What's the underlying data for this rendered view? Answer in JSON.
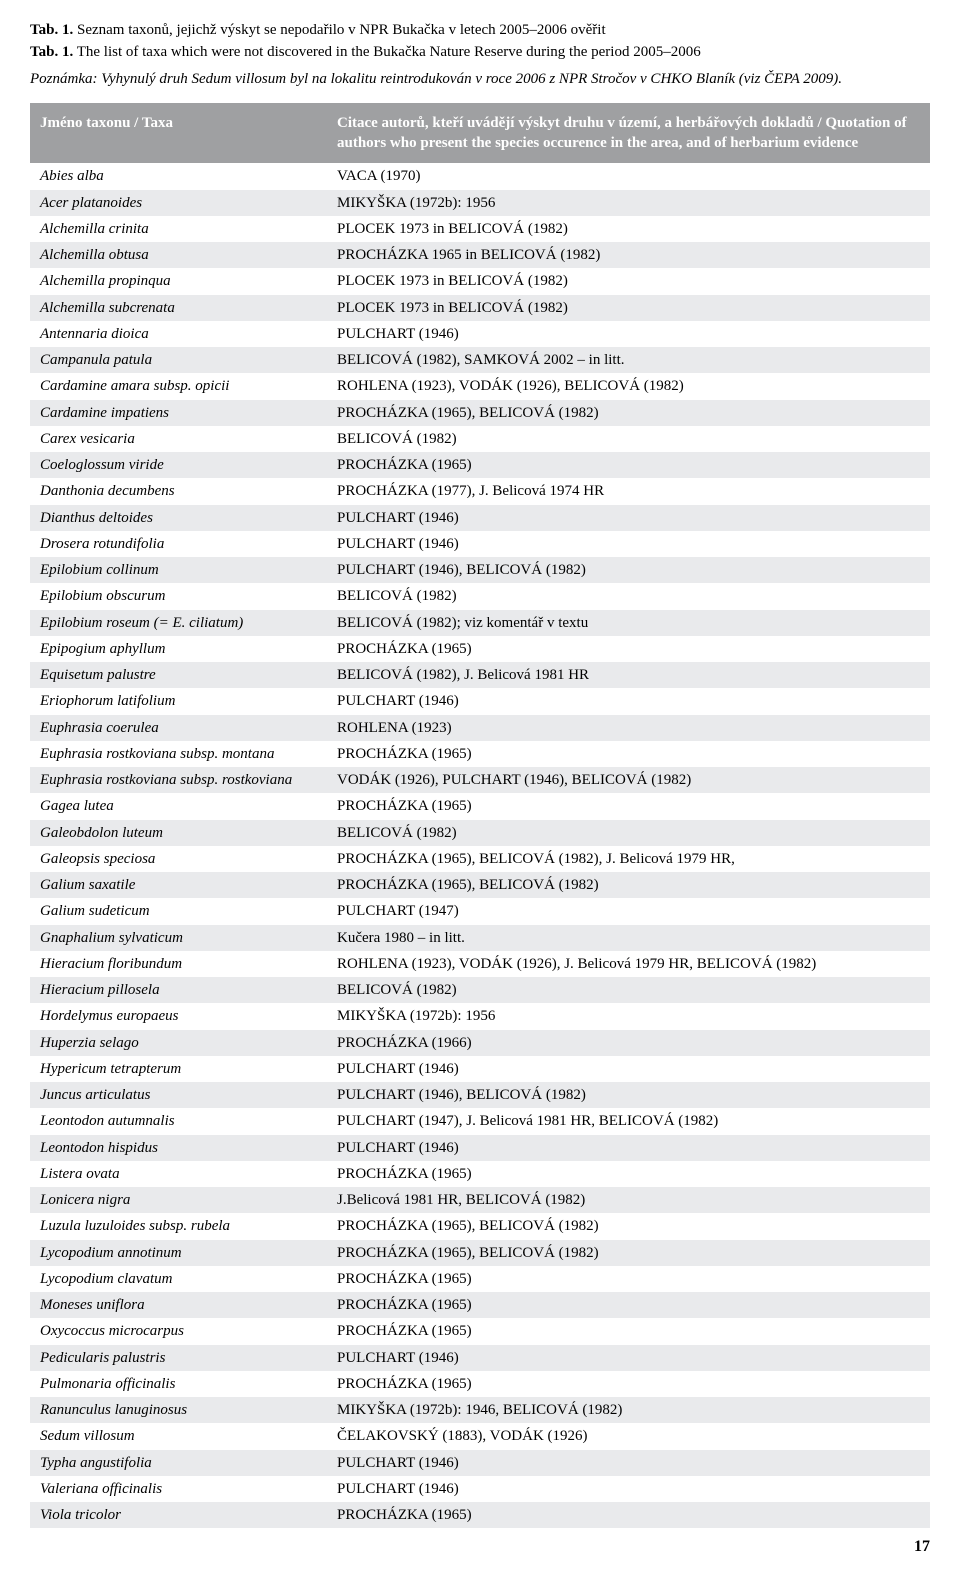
{
  "header": {
    "title_cs_label": "Tab. 1.",
    "title_cs": "Seznam taxonů, jejichž výskyt se nepodařilo v NPR Bukačka v letech 2005–2006 ověřit",
    "title_en_label": "Tab. 1.",
    "title_en": "The list of taxa which were not discovered in the Bukačka Nature Reserve during the period 2005–2006",
    "note": "Poznámka: Vyhynulý druh Sedum villosum byl na lokalitu reintrodukován v roce 2006 z NPR Stročov v CHKO Blaník (viz ČEPA 2009)."
  },
  "table": {
    "col1_header": "Jméno taxonu / Taxa",
    "col2_header": "Citace autorů, kteří uvádějí výskyt druhu v území, a herbářových dokladů / Quotation of authors who present the species occurence in the area, and of herbarium evidence",
    "rows": [
      {
        "taxon": "Abies alba",
        "cite": "VACA (1970)"
      },
      {
        "taxon": "Acer platanoides",
        "cite": "MIKYŠKA (1972b): 1956"
      },
      {
        "taxon": "Alchemilla crinita",
        "cite": "PLOCEK 1973 in BELICOVÁ (1982)"
      },
      {
        "taxon": "Alchemilla obtusa",
        "cite": "PROCHÁZKA 1965 in BELICOVÁ (1982)"
      },
      {
        "taxon": "Alchemilla propinqua",
        "cite": "PLOCEK 1973 in BELICOVÁ (1982)"
      },
      {
        "taxon": "Alchemilla subcrenata",
        "cite": "PLOCEK 1973 in BELICOVÁ (1982)"
      },
      {
        "taxon": "Antennaria dioica",
        "cite": "PULCHART (1946)"
      },
      {
        "taxon": "Campanula patula",
        "cite": "BELICOVÁ (1982), SAMKOVÁ 2002 – in litt."
      },
      {
        "taxon": "Cardamine amara subsp. opicii",
        "cite": "ROHLENA (1923), VODÁK (1926), BELICOVÁ (1982)"
      },
      {
        "taxon": "Cardamine impatiens",
        "cite": "PROCHÁZKA (1965), BELICOVÁ (1982)"
      },
      {
        "taxon": "Carex vesicaria",
        "cite": "BELICOVÁ (1982)"
      },
      {
        "taxon": "Coeloglossum viride",
        "cite": "PROCHÁZKA (1965)"
      },
      {
        "taxon": "Danthonia decumbens",
        "cite": "PROCHÁZKA (1977), J. Belicová 1974 HR"
      },
      {
        "taxon": "Dianthus deltoides",
        "cite": "PULCHART (1946)"
      },
      {
        "taxon": "Drosera rotundifolia",
        "cite": "PULCHART (1946)"
      },
      {
        "taxon": "Epilobium collinum",
        "cite": "PULCHART (1946), BELICOVÁ (1982)"
      },
      {
        "taxon": "Epilobium obscurum",
        "cite": "BELICOVÁ (1982)"
      },
      {
        "taxon": "Epilobium roseum (= E. ciliatum)",
        "cite": "BELICOVÁ (1982); viz komentář v textu"
      },
      {
        "taxon": "Epipogium aphyllum",
        "cite": "PROCHÁZKA (1965)"
      },
      {
        "taxon": "Equisetum palustre",
        "cite": "BELICOVÁ (1982), J. Belicová 1981 HR"
      },
      {
        "taxon": "Eriophorum latifolium",
        "cite": "PULCHART (1946)"
      },
      {
        "taxon": "Euphrasia coerulea",
        "cite": "ROHLENA (1923)"
      },
      {
        "taxon": "Euphrasia rostkoviana subsp. montana",
        "cite": "PROCHÁZKA (1965)"
      },
      {
        "taxon": "Euphrasia rostkoviana subsp. rostkoviana",
        "cite": "VODÁK (1926), PULCHART (1946), BELICOVÁ (1982)"
      },
      {
        "taxon": "Gagea lutea",
        "cite": "PROCHÁZKA (1965)"
      },
      {
        "taxon": "Galeobdolon luteum",
        "cite": "BELICOVÁ (1982)"
      },
      {
        "taxon": "Galeopsis speciosa",
        "cite": "PROCHÁZKA (1965), BELICOVÁ (1982), J. Belicová 1979 HR,"
      },
      {
        "taxon": "Galium saxatile",
        "cite": "PROCHÁZKA (1965), BELICOVÁ (1982)"
      },
      {
        "taxon": "Galium sudeticum",
        "cite": "PULCHART (1947)"
      },
      {
        "taxon": "Gnaphalium sylvaticum",
        "cite": "Kučera 1980 – in litt."
      },
      {
        "taxon": "Hieracium floribundum",
        "cite": "ROHLENA (1923), VODÁK (1926), J. Belicová 1979 HR, BELICOVÁ (1982)"
      },
      {
        "taxon": "Hieracium pillosela",
        "cite": "BELICOVÁ (1982)"
      },
      {
        "taxon": "Hordelymus europaeus",
        "cite": "MIKYŠKA (1972b): 1956"
      },
      {
        "taxon": "Huperzia selago",
        "cite": "PROCHÁZKA (1966)"
      },
      {
        "taxon": "Hypericum tetrapterum",
        "cite": "PULCHART (1946)"
      },
      {
        "taxon": "Juncus articulatus",
        "cite": "PULCHART (1946), BELICOVÁ (1982)"
      },
      {
        "taxon": "Leontodon autumnalis",
        "cite": "PULCHART (1947), J. Belicová 1981 HR, BELICOVÁ (1982)"
      },
      {
        "taxon": "Leontodon hispidus",
        "cite": "PULCHART (1946)"
      },
      {
        "taxon": "Listera ovata",
        "cite": "PROCHÁZKA (1965)"
      },
      {
        "taxon": "Lonicera nigra",
        "cite": "J.Belicová 1981 HR, BELICOVÁ (1982)"
      },
      {
        "taxon": "Luzula luzuloides subsp. rubela",
        "cite": "PROCHÁZKA (1965), BELICOVÁ (1982)"
      },
      {
        "taxon": "Lycopodium annotinum",
        "cite": "PROCHÁZKA (1965), BELICOVÁ (1982)"
      },
      {
        "taxon": "Lycopodium clavatum",
        "cite": "PROCHÁZKA (1965)"
      },
      {
        "taxon": "Moneses uniflora",
        "cite": "PROCHÁZKA (1965)"
      },
      {
        "taxon": "Oxycoccus microcarpus",
        "cite": "PROCHÁZKA (1965)"
      },
      {
        "taxon": "Pedicularis palustris",
        "cite": "PULCHART (1946)"
      },
      {
        "taxon": "Pulmonaria officinalis",
        "cite": "PROCHÁZKA (1965)"
      },
      {
        "taxon": "Ranunculus lanuginosus",
        "cite": "MIKYŠKA (1972b): 1946, BELICOVÁ (1982)"
      },
      {
        "taxon": "Sedum villosum",
        "cite": "ČELAKOVSKÝ (1883), VODÁK (1926)"
      },
      {
        "taxon": "Typha angustifolia",
        "cite": "PULCHART (1946)"
      },
      {
        "taxon": "Valeriana officinalis",
        "cite": "PULCHART (1946)"
      },
      {
        "taxon": "Viola tricolor",
        "cite": "PROCHÁZKA (1965)"
      }
    ]
  },
  "page_number": "17"
}
